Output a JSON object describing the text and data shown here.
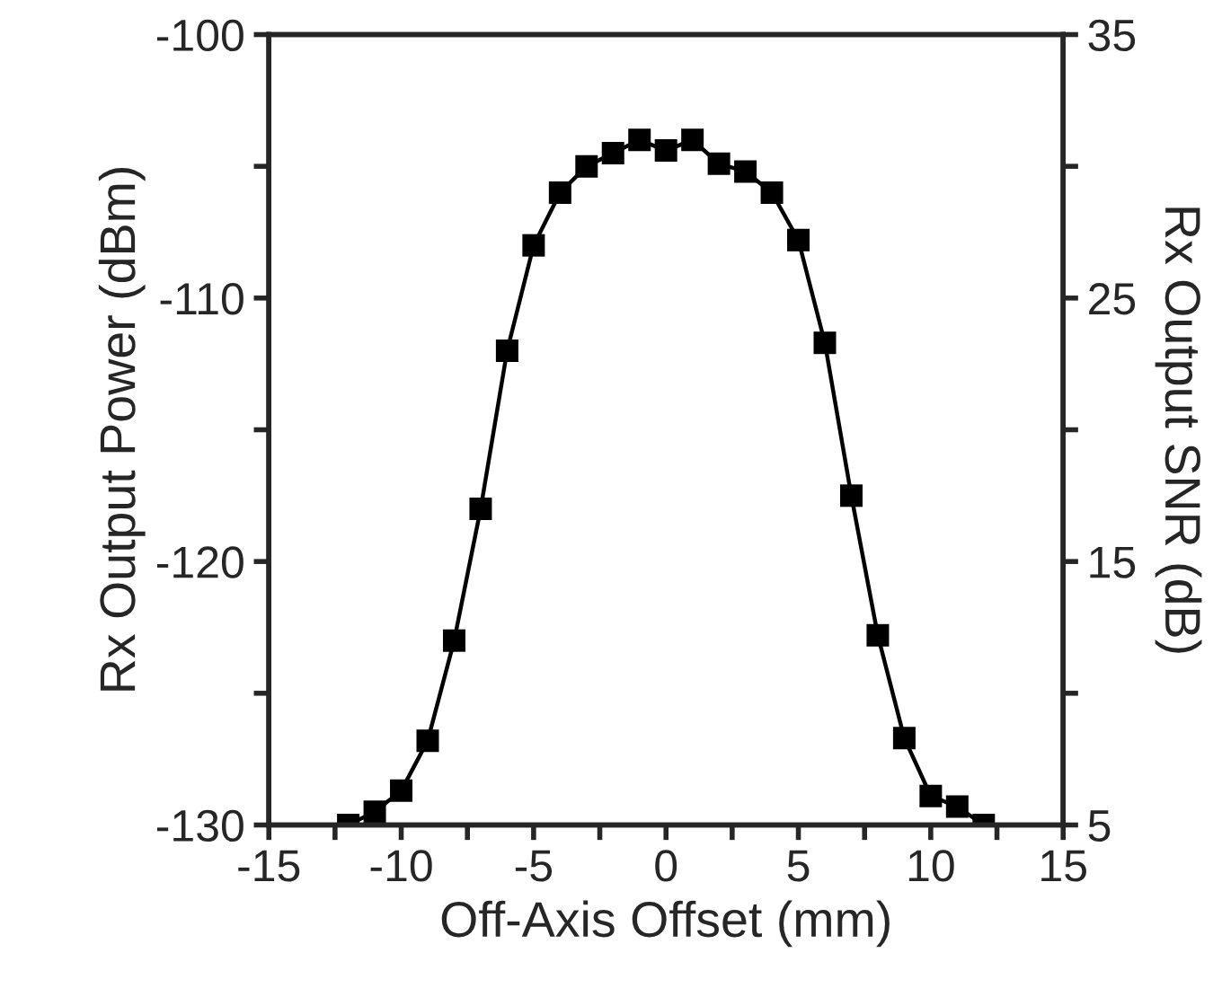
{
  "chart_data": {
    "type": "line",
    "xlabel": "Off-Axis Offset (mm)",
    "ylabel": "Rx Output Power (dBm)",
    "y2label": "Rx Output SNR (dB)",
    "x": [
      -12,
      -11,
      -10,
      -9,
      -8,
      -7,
      -6,
      -5,
      -4,
      -3,
      -2,
      -1,
      0,
      1,
      2,
      3,
      4,
      5,
      6,
      7,
      8,
      9,
      10,
      11,
      12
    ],
    "series": [
      {
        "color": "#000000",
        "values": [
          -130.0,
          -129.5,
          -128.7,
          -126.8,
          -123.0,
          -118.0,
          -112.0,
          -108.0,
          -106.0,
          -105.0,
          -104.5,
          -104.0,
          -104.4,
          -104.0,
          -104.9,
          -105.2,
          -106.0,
          -107.8,
          -111.7,
          -117.5,
          -122.8,
          -126.7,
          -128.9,
          -129.3,
          -130.0
        ]
      }
    ],
    "marker": "square",
    "line_style": "solid",
    "grid": false,
    "legend": false,
    "xlim": [
      -15,
      15
    ],
    "xticks": [
      -15,
      {
        "value": -12.5,
        "label": null
      },
      -10,
      {
        "value": -7.5,
        "label": null
      },
      -5,
      {
        "value": -2.5,
        "label": null
      },
      0,
      {
        "value": 2.5,
        "label": null
      },
      5,
      {
        "value": 7.5,
        "label": null
      },
      10,
      {
        "value": 12.5,
        "label": null
      },
      15
    ],
    "ylim": [
      -130,
      -100
    ],
    "yticks": [
      -130,
      {
        "value": -125,
        "label": null
      },
      -120,
      {
        "value": -115,
        "label": null
      },
      -110,
      {
        "value": -105,
        "label": null
      },
      -100
    ],
    "y2lim": [
      5,
      35
    ],
    "y2ticks": [
      5,
      {
        "value": 10,
        "label": null
      },
      15,
      {
        "value": 20,
        "label": null
      },
      25,
      {
        "value": 30,
        "label": null
      },
      35
    ]
  }
}
